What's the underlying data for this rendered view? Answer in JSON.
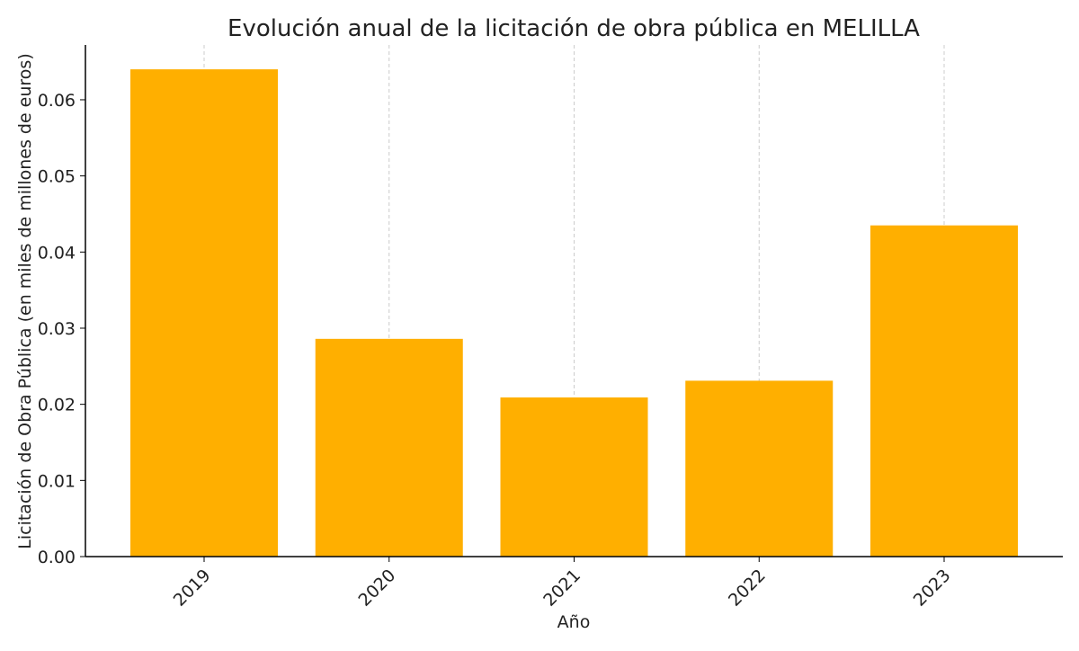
{
  "chart_data": {
    "type": "bar",
    "title": "Evolución anual de la licitación de obra pública en MELILLA",
    "xlabel": "Año",
    "ylabel": "Licitación de Obra Pública (en miles de millones de euros)",
    "categories": [
      "2019",
      "2020",
      "2021",
      "2022",
      "2023"
    ],
    "values": [
      0.064,
      0.0286,
      0.0209,
      0.0231,
      0.0435
    ],
    "ylim": [
      0,
      0.0672
    ],
    "yticks": [
      "0.00",
      "0.01",
      "0.02",
      "0.03",
      "0.04",
      "0.05",
      "0.06"
    ],
    "grid": "vertical dashed on x",
    "bar_color": "#FFAF00",
    "grid_color": "#CCCCCC"
  }
}
